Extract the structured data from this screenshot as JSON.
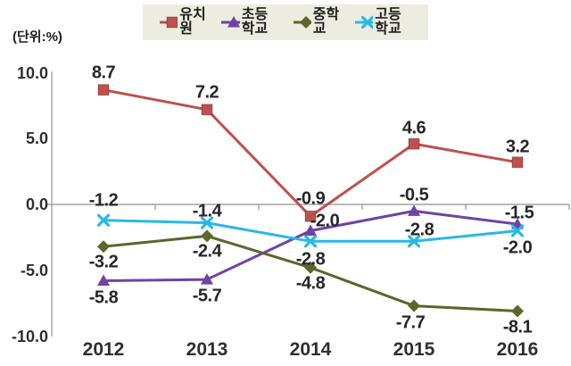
{
  "unit_label": "(단위:%)",
  "colors": {
    "background": "#ffffff",
    "legend_background": "#ecece0",
    "axis": "#a3a3a3",
    "label_text": "#262626",
    "series_kindergarten": "#c0504d",
    "series_elementary": "#7041a5",
    "series_middle": "#5d662b",
    "series_high": "#28b8e6"
  },
  "chart_data": {
    "type": "line",
    "title": "",
    "xlabel": "",
    "ylabel": "(단위:%)",
    "categories": [
      "2012",
      "2013",
      "2014",
      "2015",
      "2016"
    ],
    "series": [
      {
        "key": "kindergarten",
        "name": "유치원",
        "color": "#c0504d",
        "marker": "square",
        "values": [
          8.7,
          7.2,
          -0.9,
          4.6,
          3.2
        ],
        "label_positions": [
          "above",
          "above",
          "above",
          "above",
          "above"
        ],
        "label_offsets": [
          [
            0,
            0
          ],
          [
            0,
            0
          ],
          [
            0,
            0
          ],
          [
            0,
            2
          ],
          [
            0,
            2
          ]
        ]
      },
      {
        "key": "elementary",
        "name": "초등학교",
        "color": "#7041a5",
        "marker": "triangle",
        "values": [
          -5.8,
          -5.7,
          -2.0,
          -0.5,
          -1.5
        ],
        "label_positions": [
          "below",
          "below",
          "above",
          "above",
          "above"
        ],
        "label_offsets": [
          [
            0,
            0
          ],
          [
            0,
            0
          ],
          [
            16,
            8
          ],
          [
            0,
            2
          ],
          [
            2,
            7
          ]
        ]
      },
      {
        "key": "middle",
        "name": "중학교",
        "color": "#5d662b",
        "marker": "diamond",
        "values": [
          -3.2,
          -2.4,
          -4.8,
          -7.7,
          -8.1
        ],
        "label_positions": [
          "below",
          "below",
          "below",
          "below",
          "below"
        ],
        "label_offsets": [
          [
            0,
            -1
          ],
          [
            0,
            -1
          ],
          [
            0,
            -1
          ],
          [
            -4,
            0
          ],
          [
            0,
            0
          ]
        ]
      },
      {
        "key": "high",
        "name": "고등학교",
        "color": "#28b8e6",
        "marker": "x",
        "values": [
          -1.2,
          -1.4,
          -2.8,
          -2.8,
          -2.0
        ],
        "label_positions": [
          "above",
          "above",
          "below",
          "above",
          "below"
        ],
        "label_offsets": [
          [
            0,
            -3
          ],
          [
            0,
            6
          ],
          [
            0,
            2
          ],
          [
            6,
            7
          ],
          [
            0,
            0
          ]
        ]
      }
    ],
    "y_ticks": [
      "10.0",
      "5.0",
      "0.0",
      "-5.0",
      "-10.0"
    ],
    "y_tick_values": [
      10,
      5,
      0,
      -5,
      -10
    ],
    "ylim": [
      -10,
      10
    ],
    "legend_position": "top",
    "grid": false,
    "zero_axis_line": true
  }
}
